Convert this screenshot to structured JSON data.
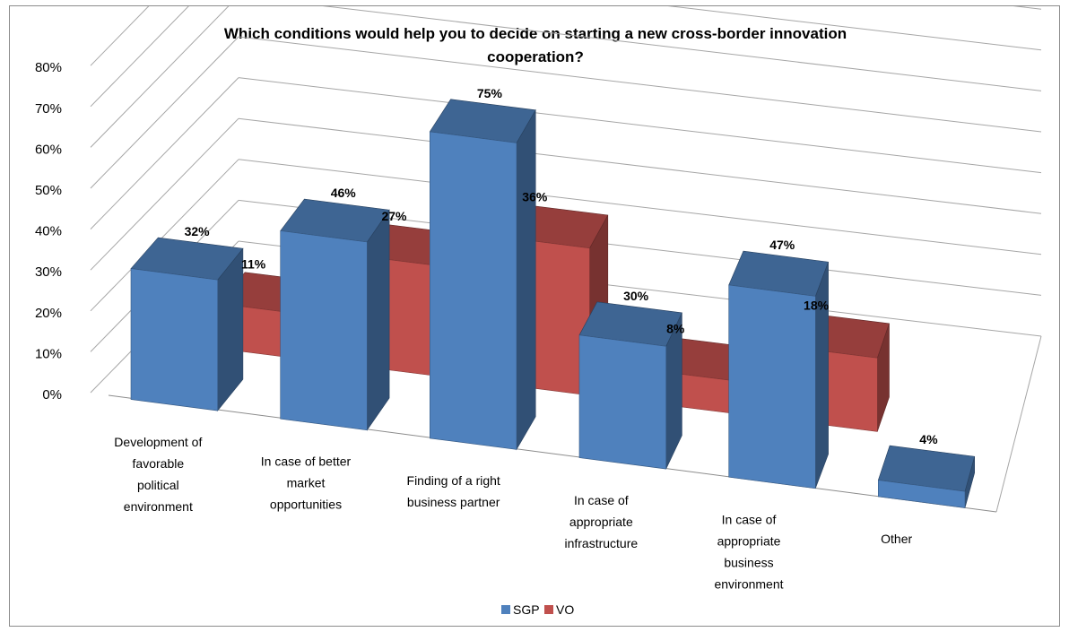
{
  "chart_data": {
    "type": "bar",
    "title_lines": [
      "Which conditions would help you to decide on starting a new cross-border innovation",
      "cooperation?"
    ],
    "categories": [
      [
        "Development of",
        "favorable",
        "political",
        "environment"
      ],
      [
        "In case of better",
        "market",
        "opportunities"
      ],
      [
        "Finding of a right",
        "business partner"
      ],
      [
        "In case of",
        "appropriate",
        "infrastructure"
      ],
      [
        "In case of",
        "appropriate",
        "business",
        "environment"
      ],
      [
        "Other"
      ]
    ],
    "series": [
      {
        "name": "SGP",
        "values": [
          32,
          46,
          75,
          30,
          47,
          4
        ],
        "labels": [
          "32%",
          "46%",
          "75%",
          "30%",
          "47%",
          "4%"
        ],
        "color": "#4f81bd"
      },
      {
        "name": "VO",
        "values": [
          11,
          27,
          36,
          8,
          18,
          null
        ],
        "labels": [
          "11%",
          "27%",
          "36%",
          "8%",
          "18%",
          ""
        ],
        "color": "#c0504d"
      }
    ],
    "y_ticks": [
      "0%",
      "10%",
      "20%",
      "30%",
      "40%",
      "50%",
      "60%",
      "70%",
      "80%"
    ],
    "ylim": [
      0,
      80
    ],
    "grid": true,
    "legend_position": "bottom",
    "projection": "3d-clustered-column"
  }
}
